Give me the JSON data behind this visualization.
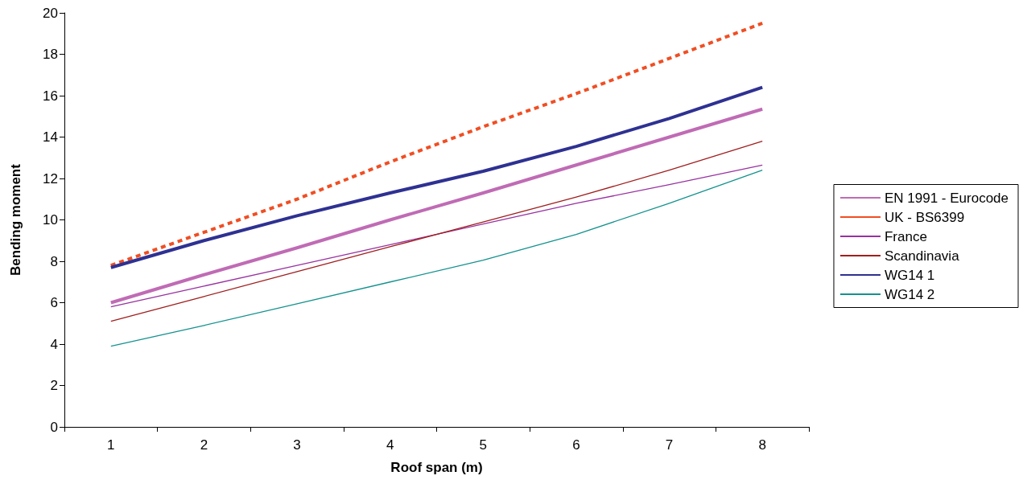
{
  "chart_data": {
    "type": "line",
    "xlabel": "Roof span (m)",
    "ylabel": "Bending moment",
    "categories": [
      "1",
      "2",
      "3",
      "4",
      "5",
      "6",
      "7",
      "8"
    ],
    "series": [
      {
        "name": "EN 1991 - Eurocode",
        "color": "#c06bb5",
        "line_style": "solid",
        "values": [
          6.0,
          7.35,
          8.65,
          10.0,
          11.3,
          12.65,
          14.0,
          15.35
        ]
      },
      {
        "name": "UK - BS6399",
        "color": "#f04e23",
        "line_style": "dashed",
        "values": [
          7.8,
          9.4,
          11.0,
          12.8,
          14.5,
          16.1,
          17.8,
          19.5
        ]
      },
      {
        "name": "France",
        "color": "#9932a0",
        "line_style": "solid",
        "values": [
          5.8,
          6.8,
          7.8,
          8.8,
          9.8,
          10.8,
          11.7,
          12.65
        ]
      },
      {
        "name": "Scandinavia",
        "color": "#a01e1e",
        "line_style": "solid",
        "values": [
          5.1,
          6.3,
          7.5,
          8.7,
          9.9,
          11.1,
          12.4,
          13.8
        ]
      },
      {
        "name": "WG14 1",
        "color": "#2e3192",
        "line_style": "solid",
        "values": [
          7.7,
          9.0,
          10.2,
          11.3,
          12.35,
          13.55,
          14.9,
          16.4
        ]
      },
      {
        "name": "WG14 2",
        "color": "#14928f",
        "line_style": "solid",
        "values": [
          3.9,
          4.9,
          5.95,
          7.0,
          8.05,
          9.3,
          10.8,
          12.4
        ]
      }
    ],
    "ylim": [
      0,
      20
    ],
    "yticks": [
      0,
      2,
      4,
      6,
      8,
      10,
      12,
      14,
      16,
      18,
      20
    ],
    "grid": false,
    "legend": "right",
    "marker": "none"
  }
}
